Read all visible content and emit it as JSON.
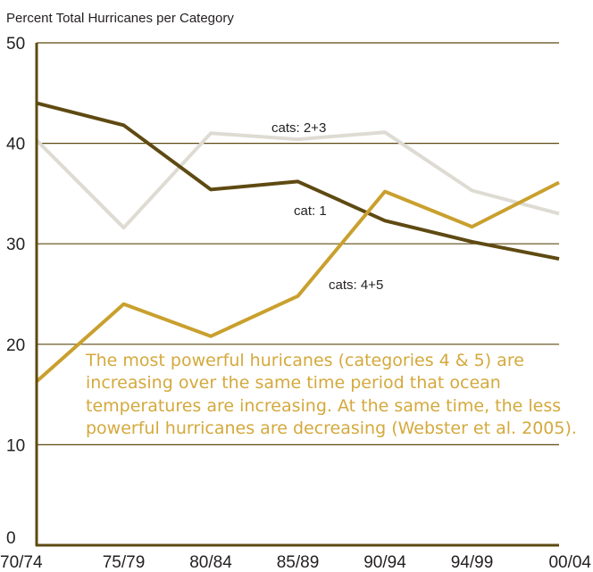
{
  "chart_data": {
    "type": "line",
    "title": "Percent Total Hurricanes per Category",
    "xlabel": "",
    "ylabel": "",
    "categories": [
      "70/74",
      "75/79",
      "80/84",
      "85/89",
      "90/94",
      "94/99",
      "00/04"
    ],
    "yticks": [
      0,
      10,
      20,
      30,
      40,
      50
    ],
    "ylim": [
      0,
      50
    ],
    "grid": true,
    "series": [
      {
        "name": "cat: 1",
        "values": [
          44.0,
          41.8,
          35.4,
          36.2,
          32.3,
          30.2,
          28.5
        ],
        "color": "#5e4a12"
      },
      {
        "name": "cats: 2+3",
        "values": [
          40.3,
          31.6,
          41.0,
          40.4,
          41.1,
          35.3,
          33.0
        ],
        "color": "#dedbd3"
      },
      {
        "name": "cats: 4+5",
        "values": [
          16.3,
          24.0,
          20.8,
          24.8,
          35.2,
          31.7,
          36.1
        ],
        "color": "#c9a02e"
      }
    ],
    "annotation": [
      "The most powerful huricanes (categories 4 & 5) are",
      "increasing over the same time period that ocean",
      "temperatures are increasing. At the same time, the less",
      "powerful hurricanes are decreasing (Webster et al. 2005)."
    ],
    "colors": {
      "axis": "#5e4a12",
      "grid": "#5e4a12",
      "annotation_text": "#d4a93c"
    }
  }
}
